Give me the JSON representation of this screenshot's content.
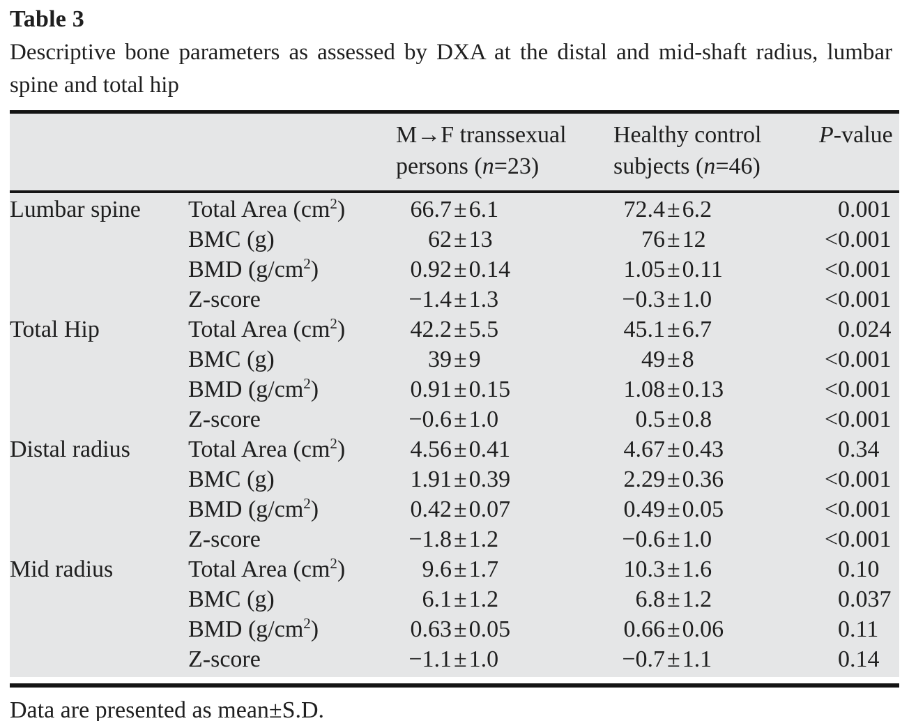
{
  "page": {
    "title": "Table 3",
    "caption": "Descriptive bone parameters as assessed by DXA at the distal and mid-shaft radius, lumbar spine and total hip",
    "footnote": "Data are presented as mean±S.D."
  },
  "table": {
    "pm_symbol": "±",
    "colors": {
      "table_background": "#e5e6e7",
      "rule": "#141414",
      "text": "#1f1f1f"
    },
    "header": {
      "group1": {
        "line1": "M→F transsexual",
        "line2_pre": "persons (",
        "n": "n",
        "line2_post": "=23)"
      },
      "group2": {
        "line1": "Healthy control",
        "line2_pre": "subjects (",
        "n": "n",
        "line2_post": "=46)"
      },
      "p": {
        "italic": "P",
        "rest": "-value"
      }
    },
    "rows": [
      {
        "site": "Lumbar spine",
        "param": "Total Area (cm",
        "param_sup": "2",
        "param_end": ")",
        "g1": "66.7±6.1",
        "g2": "72.4±6.2",
        "p": "0.001"
      },
      {
        "site": "",
        "param": "BMC (g)",
        "param_sup": "",
        "param_end": "",
        "g1": "62±13",
        "g2": "76±12",
        "p": "<0.001"
      },
      {
        "site": "",
        "param": "BMD (g/cm",
        "param_sup": "2",
        "param_end": ")",
        "g1": "0.92±0.14",
        "g2": "1.05±0.11",
        "p": "<0.001"
      },
      {
        "site": "",
        "param": "Z-score",
        "param_sup": "",
        "param_end": "",
        "g1": "−1.4±1.3",
        "g2": "−0.3±1.0",
        "p": "<0.001"
      },
      {
        "site": "Total Hip",
        "param": "Total Area (cm",
        "param_sup": "2",
        "param_end": ")",
        "g1": "42.2±5.5",
        "g2": "45.1±6.7",
        "p": "0.024"
      },
      {
        "site": "",
        "param": "BMC (g)",
        "param_sup": "",
        "param_end": "",
        "g1": "39±9",
        "g2": "49±8",
        "p": "<0.001"
      },
      {
        "site": "",
        "param": "BMD (g/cm",
        "param_sup": "2",
        "param_end": ")",
        "g1": "0.91±0.15",
        "g2": "1.08±0.13",
        "p": "<0.001"
      },
      {
        "site": "",
        "param": "Z-score",
        "param_sup": "",
        "param_end": "",
        "g1": "−0.6±1.0",
        "g2": "0.5±0.8",
        "p": "<0.001"
      },
      {
        "site": "Distal radius",
        "param": "Total Area (cm",
        "param_sup": "2",
        "param_end": ")",
        "g1": "4.56±0.41",
        "g2": "4.67±0.43",
        "p": "0.34"
      },
      {
        "site": "",
        "param": "BMC (g)",
        "param_sup": "",
        "param_end": "",
        "g1": "1.91±0.39",
        "g2": "2.29±0.36",
        "p": "<0.001"
      },
      {
        "site": "",
        "param": "BMD (g/cm",
        "param_sup": "2",
        "param_end": ")",
        "g1": "0.42±0.07",
        "g2": "0.49±0.05",
        "p": "<0.001"
      },
      {
        "site": "",
        "param": "Z-score",
        "param_sup": "",
        "param_end": "",
        "g1": "−1.8±1.2",
        "g2": "−0.6±1.0",
        "p": "<0.001"
      },
      {
        "site": "Mid radius",
        "param": "Total Area (cm",
        "param_sup": "2",
        "param_end": ")",
        "g1": "9.6±1.7",
        "g2": "10.3±1.6",
        "p": "0.10"
      },
      {
        "site": "",
        "param": "BMC (g)",
        "param_sup": "",
        "param_end": "",
        "g1": "6.1±1.2",
        "g2": "6.8±1.2",
        "p": "0.037"
      },
      {
        "site": "",
        "param": "BMD (g/cm",
        "param_sup": "2",
        "param_end": ")",
        "g1": "0.63±0.05",
        "g2": "0.66±0.06",
        "p": "0.11"
      },
      {
        "site": "",
        "param": "Z-score",
        "param_sup": "",
        "param_end": "",
        "g1": "−1.1±1.0",
        "g2": "−0.7±1.1",
        "p": "0.14"
      }
    ]
  }
}
